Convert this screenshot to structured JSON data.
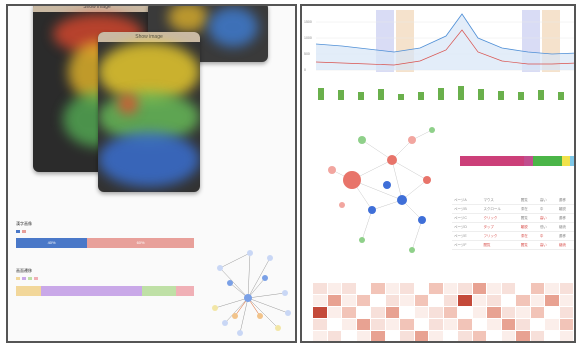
{
  "left_panel": {
    "phone_titles": [
      "Show image",
      "Show image"
    ],
    "bar_group_1": {
      "label": "漢字画像",
      "legend": [
        "●",
        "●"
      ],
      "segments": [
        {
          "label": "40%",
          "value": 40,
          "color": "#4a78c8"
        },
        {
          "label": "60%",
          "value": 60,
          "color": "#e8a09a"
        }
      ]
    },
    "bar_group_2": {
      "label": "画面遷移",
      "legend": [
        "●",
        "●",
        "●",
        "●"
      ],
      "segments": [
        {
          "label": "",
          "value": 14,
          "color": "#f2d79a"
        },
        {
          "label": "",
          "value": 57,
          "color": "#c9a8e8"
        },
        {
          "label": "",
          "value": 19,
          "color": "#bfe0a6"
        },
        {
          "label": "",
          "value": 10,
          "color": "#f0b0b6"
        }
      ]
    }
  },
  "right_panel": {
    "line_chart_yticks": [
      "1500",
      "1000",
      "500",
      "0"
    ],
    "stacked_bar_colors": [
      "#cc3f79",
      "#c14d8e",
      "#4bb548",
      "#f1e24b",
      "#7ec8e8"
    ],
    "table_rows": [
      [
        "ページA",
        "マウス",
        "閲覧",
        "高い",
        "遷移"
      ],
      [
        "ページB",
        "スクロール",
        "滞在",
        "中",
        "離脱"
      ],
      [
        "ページC",
        "クリック",
        "閲覧",
        "高い",
        "遷移"
      ],
      [
        "ページD",
        "タップ",
        "離脱",
        "低い",
        "継続"
      ],
      [
        "ページE",
        "フリック",
        "滞在",
        "中",
        "遷移"
      ],
      [
        "ページF",
        "閲覧",
        "閲覧",
        "高い",
        "継続"
      ]
    ]
  }
}
